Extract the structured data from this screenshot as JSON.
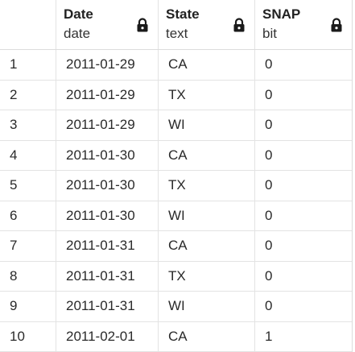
{
  "columns": [
    {
      "name": "Date",
      "type": "date",
      "locked": true,
      "icon": "lock-icon"
    },
    {
      "name": "State",
      "type": "text",
      "locked": true,
      "icon": "lock-icon"
    },
    {
      "name": "SNAP",
      "type": "bit",
      "locked": true,
      "icon": "lock-icon"
    }
  ],
  "rows": [
    {
      "num": "1",
      "date": "2011-01-29",
      "state": "CA",
      "snap": "0"
    },
    {
      "num": "2",
      "date": "2011-01-29",
      "state": "TX",
      "snap": "0"
    },
    {
      "num": "3",
      "date": "2011-01-29",
      "state": "WI",
      "snap": "0"
    },
    {
      "num": "4",
      "date": "2011-01-30",
      "state": "CA",
      "snap": "0"
    },
    {
      "num": "5",
      "date": "2011-01-30",
      "state": "TX",
      "snap": "0"
    },
    {
      "num": "6",
      "date": "2011-01-30",
      "state": "WI",
      "snap": "0"
    },
    {
      "num": "7",
      "date": "2011-01-31",
      "state": "CA",
      "snap": "0"
    },
    {
      "num": "8",
      "date": "2011-01-31",
      "state": "TX",
      "snap": "0"
    },
    {
      "num": "9",
      "date": "2011-01-31",
      "state": "WI",
      "snap": "0"
    },
    {
      "num": "10",
      "date": "2011-02-01",
      "state": "CA",
      "snap": "1"
    }
  ]
}
